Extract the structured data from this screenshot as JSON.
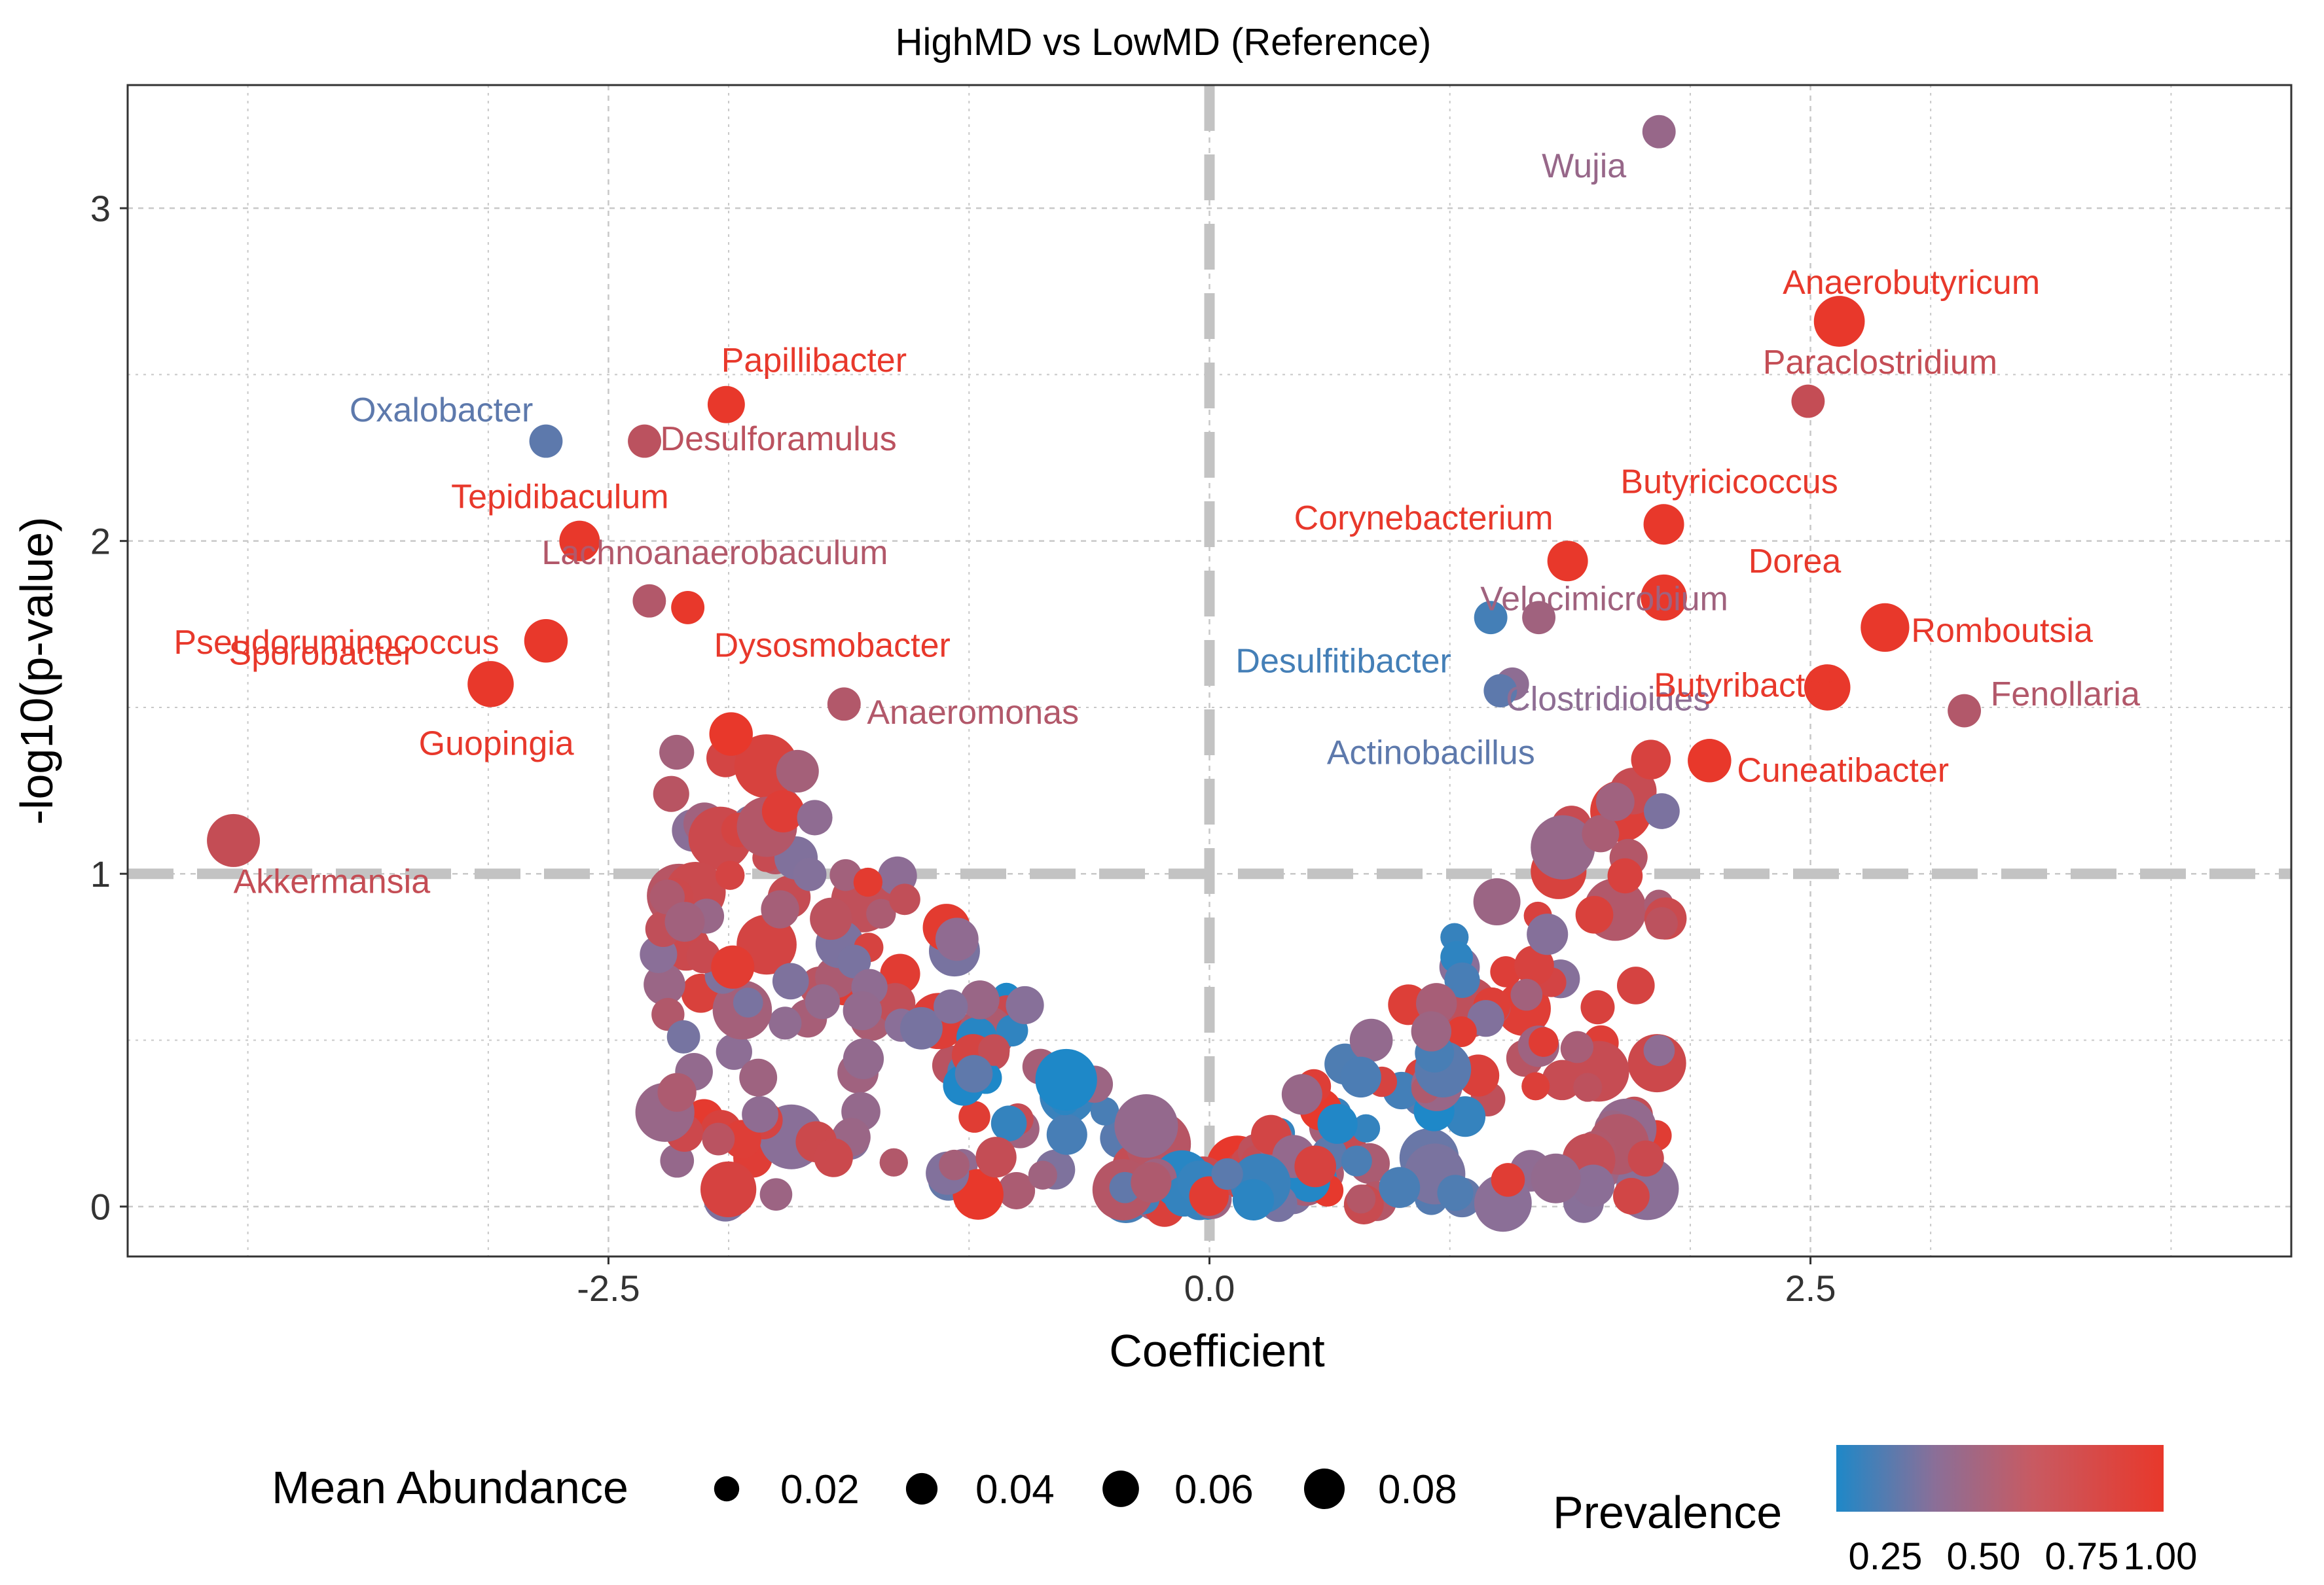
{
  "colors": {
    "low_prevalence": "#1e88c8",
    "high_prevalence": "#e8382b",
    "grid": "#c8c8c8",
    "threshold_line": "#c3c3c3",
    "axis_text": "#333333"
  },
  "chart_data": {
    "type": "scatter",
    "title": "HighMD vs LowMD (Reference)",
    "xlabel": "Coefficient",
    "ylabel": "-log10(p-value)",
    "xlim": [
      -4.5,
      4.5
    ],
    "ylim": [
      -0.15,
      3.37
    ],
    "x_ticks": [
      -2.5,
      0.0,
      2.5
    ],
    "x_tick_labels": [
      "-2.5",
      "0.0",
      "2.5"
    ],
    "y_ticks": [
      0,
      1,
      2,
      3
    ],
    "y_tick_labels": [
      "0",
      "1",
      "2",
      "3"
    ],
    "grid": true,
    "threshold_lines": {
      "x": 0,
      "y": 1
    },
    "size_legend": {
      "title": "Mean Abundance",
      "values": [
        0.02,
        0.04,
        0.06,
        0.08
      ],
      "labels": [
        "0.02",
        "0.04",
        "0.06",
        "0.08"
      ]
    },
    "color_legend": {
      "title": "Prevalence",
      "labels": [
        "0.25",
        "0.50",
        "0.75",
        "1.00"
      ]
    },
    "labeled_points": [
      {
        "label": "Wujia",
        "x": 1.87,
        "y": 3.23,
        "prevalence": 0.55,
        "abundance": 0.01
      },
      {
        "label": "Anaerobutyricum",
        "x": 2.62,
        "y": 2.66,
        "prevalence": 1.0,
        "abundance": 0.04
      },
      {
        "label": "Paraclostridium",
        "x": 2.49,
        "y": 2.42,
        "prevalence": 0.8,
        "abundance": 0.01
      },
      {
        "label": "Butyricicoccus",
        "x": 1.89,
        "y": 2.05,
        "prevalence": 1.0,
        "abundance": 0.02
      },
      {
        "label": "Corynebacterium",
        "x": 1.49,
        "y": 1.94,
        "prevalence": 1.0,
        "abundance": 0.02
      },
      {
        "label": "Dorea",
        "x": 1.89,
        "y": 1.83,
        "prevalence": 1.0,
        "abundance": 0.03
      },
      {
        "label": "Velocimicrobium",
        "x": 1.37,
        "y": 1.77,
        "prevalence": 0.6,
        "abundance": 0.01
      },
      {
        "label": "Romboutsia",
        "x": 2.81,
        "y": 1.74,
        "prevalence": 1.0,
        "abundance": 0.035
      },
      {
        "label": "Desulfitibacter",
        "x": 1.17,
        "y": 1.77,
        "prevalence": 0.2,
        "abundance": 0.01
      },
      {
        "label": "Clostridioides",
        "x": 1.26,
        "y": 1.57,
        "prevalence": 0.5,
        "abundance": 0.01
      },
      {
        "label": "Butyribacter",
        "x": 2.57,
        "y": 1.56,
        "prevalence": 1.0,
        "abundance": 0.03
      },
      {
        "label": "Fenollaria",
        "x": 3.14,
        "y": 1.49,
        "prevalence": 0.7,
        "abundance": 0.01
      },
      {
        "label": "Actinobacillus",
        "x": 1.21,
        "y": 1.55,
        "prevalence": 0.3,
        "abundance": 0.01
      },
      {
        "label": "Cuneatibacter",
        "x": 2.08,
        "y": 1.34,
        "prevalence": 1.0,
        "abundance": 0.025
      },
      {
        "label": "Papillibacter",
        "x": -2.01,
        "y": 2.41,
        "prevalence": 1.0,
        "abundance": 0.015
      },
      {
        "label": "Oxalobacter",
        "x": -2.76,
        "y": 2.3,
        "prevalence": 0.3,
        "abundance": 0.01
      },
      {
        "label": "Desulforamulus",
        "x": -2.35,
        "y": 2.3,
        "prevalence": 0.75,
        "abundance": 0.01
      },
      {
        "label": "Tepidibaculum",
        "x": -2.62,
        "y": 2.0,
        "prevalence": 1.0,
        "abundance": 0.02
      },
      {
        "label": "Pseudoruminococcus",
        "x": -2.76,
        "y": 1.7,
        "prevalence": 1.0,
        "abundance": 0.025
      },
      {
        "label": "Lachnoanaerobaculum",
        "x": -2.33,
        "y": 1.82,
        "prevalence": 0.7,
        "abundance": 0.01
      },
      {
        "label": "Dysosmobacter",
        "x": -2.17,
        "y": 1.8,
        "prevalence": 1.0,
        "abundance": 0.01
      },
      {
        "label": "Sporobacter",
        "x": -2.99,
        "y": 1.57,
        "prevalence": 1.0,
        "abundance": 0.03
      },
      {
        "label": "Anaeromonas",
        "x": -1.52,
        "y": 1.51,
        "prevalence": 0.7,
        "abundance": 0.01
      },
      {
        "label": "Guopingia",
        "x": -1.99,
        "y": 1.42,
        "prevalence": 1.0,
        "abundance": 0.025
      },
      {
        "label": "Akkermansia",
        "x": -4.06,
        "y": 1.1,
        "prevalence": 0.8,
        "abundance": 0.045
      }
    ]
  }
}
